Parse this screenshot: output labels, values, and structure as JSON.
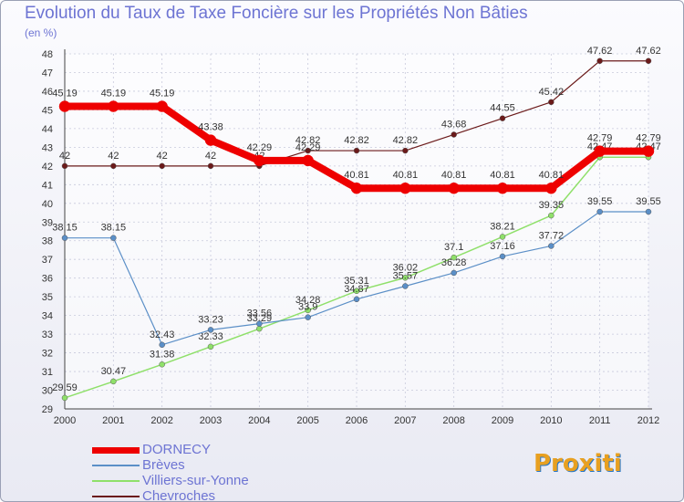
{
  "title": "Evolution du Taux de Taxe Foncière sur les Propriétés Non Bâties",
  "subtitle": "(en %)",
  "logo": "Proxiti",
  "chart_data": {
    "type": "line",
    "title": "Evolution du Taux de Taxe Foncière sur les Propriétés Non Bâties",
    "ylabel": "(en %)",
    "xlabel": "",
    "ylim": [
      29,
      48
    ],
    "yticks": [
      "29",
      "30",
      "31",
      "32",
      "33",
      "34",
      "35",
      "36",
      "37",
      "38",
      "39",
      "40",
      "41",
      "42",
      "43",
      "44",
      "45",
      "46",
      "47",
      "48"
    ],
    "categories": [
      "2000",
      "2001",
      "2002",
      "2003",
      "2004",
      "2005",
      "2006",
      "2007",
      "2008",
      "2009",
      "2010",
      "2011",
      "2012"
    ],
    "grid": true,
    "series": [
      {
        "name": "Chevroches",
        "color": "#6b1a1a",
        "width": 1.2,
        "values": [
          42,
          42,
          42,
          42,
          42,
          42.82,
          42.82,
          42.82,
          43.68,
          44.55,
          45.42,
          47.62,
          47.62
        ],
        "labels": [
          "42",
          "42",
          "42",
          "42",
          "42",
          "42.82",
          "42.82",
          "42.82",
          "43.68",
          "44.55",
          "45.42",
          "47.62",
          "47.62"
        ]
      },
      {
        "name": "Villiers-sur-Yonne",
        "color": "#8fe06a",
        "width": 1.5,
        "values": [
          29.59,
          30.47,
          31.38,
          32.33,
          33.29,
          34.28,
          35.31,
          36.02,
          37.1,
          38.21,
          39.35,
          42.47,
          42.47
        ],
        "labels": [
          "29.59",
          "30.47",
          "31.38",
          "32.33",
          "33.29",
          "34.28",
          "35.31",
          "36.02",
          "37.1",
          "38.21",
          "39.35",
          "42.47",
          "42.47"
        ]
      },
      {
        "name": "Brèves",
        "color": "#5b8fc7",
        "width": 1.2,
        "values": [
          38.15,
          38.15,
          32.43,
          33.23,
          33.56,
          33.9,
          34.87,
          35.57,
          36.28,
          37.16,
          37.72,
          39.55,
          39.55
        ],
        "labels": [
          "38.15",
          "38.15",
          "32.43",
          "33.23",
          "33.56",
          "33.9",
          "34.87",
          "35.57",
          "36.28",
          "37.16",
          "37.72",
          "39.55",
          "39.55"
        ]
      },
      {
        "name": "DORNECY",
        "color": "#ee0000",
        "width": 8,
        "values": [
          45.19,
          45.19,
          45.19,
          43.38,
          42.29,
          42.29,
          40.81,
          40.81,
          40.81,
          40.81,
          40.81,
          42.79,
          42.79
        ],
        "labels": [
          "45.19",
          "45.19",
          "45.19",
          "43.38",
          "42.29",
          "42.29",
          "40.81",
          "40.81",
          "40.81",
          "40.81",
          "40.81",
          "42.79",
          "42.79"
        ]
      }
    ],
    "legend_order": [
      "DORNECY",
      "Brèves",
      "Villiers-sur-Yonne",
      "Chevroches"
    ],
    "legend_position": "bottom-left"
  }
}
